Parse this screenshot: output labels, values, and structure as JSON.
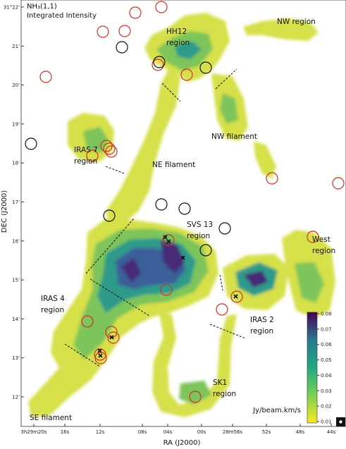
{
  "title": [
    "NH₃(1,1)",
    "Integrated Intensity"
  ],
  "regions": [
    {
      "lines": [
        "NW region"
      ]
    },
    {
      "lines": [
        "HH12",
        "region"
      ]
    },
    {
      "lines": [
        "NW filament"
      ]
    },
    {
      "lines": [
        "IRAS 7",
        "region"
      ]
    },
    {
      "lines": [
        "NE filament"
      ]
    },
    {
      "lines": [
        "SVS 13",
        "region"
      ]
    },
    {
      "lines": [
        "West",
        "region"
      ]
    },
    {
      "lines": [
        "IRAS 4",
        "region"
      ]
    },
    {
      "lines": [
        "IRAS 2",
        "region"
      ]
    },
    {
      "lines": [
        "SK1",
        "region"
      ]
    },
    {
      "lines": [
        "SE filament"
      ]
    }
  ],
  "x_axis": {
    "label": "RA (J2000)",
    "ticks": [
      "3h29m20s",
      "16s",
      "12s",
      "08s",
      "04s",
      "00s",
      "28m56s",
      "52s",
      "48s",
      "44s"
    ]
  },
  "y_axis": {
    "label": "DEC (J2000)",
    "ticks": [
      "31°22'",
      "21'",
      "20'",
      "19'",
      "18'",
      "17'",
      "16'",
      "15'",
      "14'",
      "13'",
      "12'"
    ]
  },
  "colorbar": {
    "label": "Jy/beam.km/s",
    "ticks": [
      "0.08",
      "0.07",
      "0.06",
      "0.05",
      "0.04",
      "0.03",
      "0.02",
      "0.01"
    ]
  }
}
